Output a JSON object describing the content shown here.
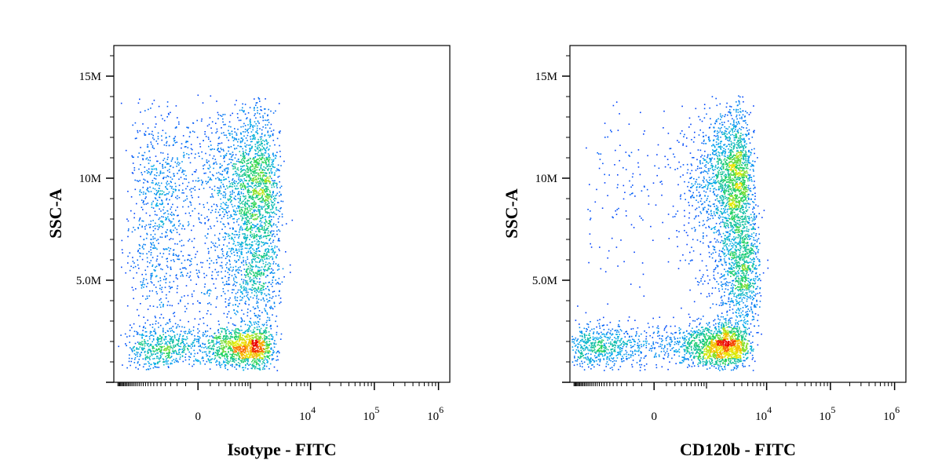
{
  "chart_data": [
    {
      "type": "scatter",
      "title": "",
      "xlabel": "Isotype - FITC",
      "ylabel": "SSC-A",
      "x_scale": "biexponential",
      "y_scale": "linear",
      "y_ticks": [
        {
          "value": 5000000,
          "label": "5.0M"
        },
        {
          "value": 10000000,
          "label": "10M"
        },
        {
          "value": 15000000,
          "label": "15M"
        }
      ],
      "x_ticks": [
        {
          "value": 0,
          "label": "0",
          "exp": ""
        },
        {
          "value": 10000,
          "label": "10",
          "exp": "4"
        },
        {
          "value": 100000,
          "label": "10",
          "exp": "5"
        },
        {
          "value": 1000000,
          "label": "10",
          "exp": "6"
        }
      ],
      "ylim": [
        0,
        16500000
      ],
      "color_map": "density (blue-green-yellow-red)",
      "populations": [
        {
          "x_center": 400,
          "x_spread": 900,
          "y_center": 1700000,
          "y_spread": 550000,
          "weight": 0.34
        },
        {
          "x_center": 700,
          "x_spread": 1000,
          "y_center": 9700000,
          "y_spread": 1900000,
          "weight": 0.46
        },
        {
          "x_center": 700,
          "x_spread": 1100,
          "y_center": 5300000,
          "y_spread": 1400000,
          "weight": 0.2
        }
      ]
    },
    {
      "type": "scatter",
      "title": "",
      "xlabel": "CD120b - FITC",
      "ylabel": "SSC-A",
      "x_scale": "biexponential",
      "y_scale": "linear",
      "y_ticks": [
        {
          "value": 5000000,
          "label": "5.0M"
        },
        {
          "value": 10000000,
          "label": "10M"
        },
        {
          "value": 15000000,
          "label": "15M"
        }
      ],
      "x_ticks": [
        {
          "value": 0,
          "label": "0",
          "exp": ""
        },
        {
          "value": 10000,
          "label": "10",
          "exp": "4"
        },
        {
          "value": 100000,
          "label": "10",
          "exp": "5"
        },
        {
          "value": 1000000,
          "label": "10",
          "exp": "6"
        }
      ],
      "ylim": [
        0,
        16500000
      ],
      "color_map": "density (blue-green-yellow-red)",
      "populations": [
        {
          "x_center": 900,
          "x_spread": 1800,
          "y_center": 1800000,
          "y_spread": 550000,
          "weight": 0.42
        },
        {
          "x_center": 2500,
          "x_spread": 1500,
          "y_center": 10000000,
          "y_spread": 1700000,
          "weight": 0.38
        },
        {
          "x_center": 3800,
          "x_spread": 1800,
          "y_center": 5500000,
          "y_spread": 1500000,
          "weight": 0.2
        }
      ]
    }
  ]
}
